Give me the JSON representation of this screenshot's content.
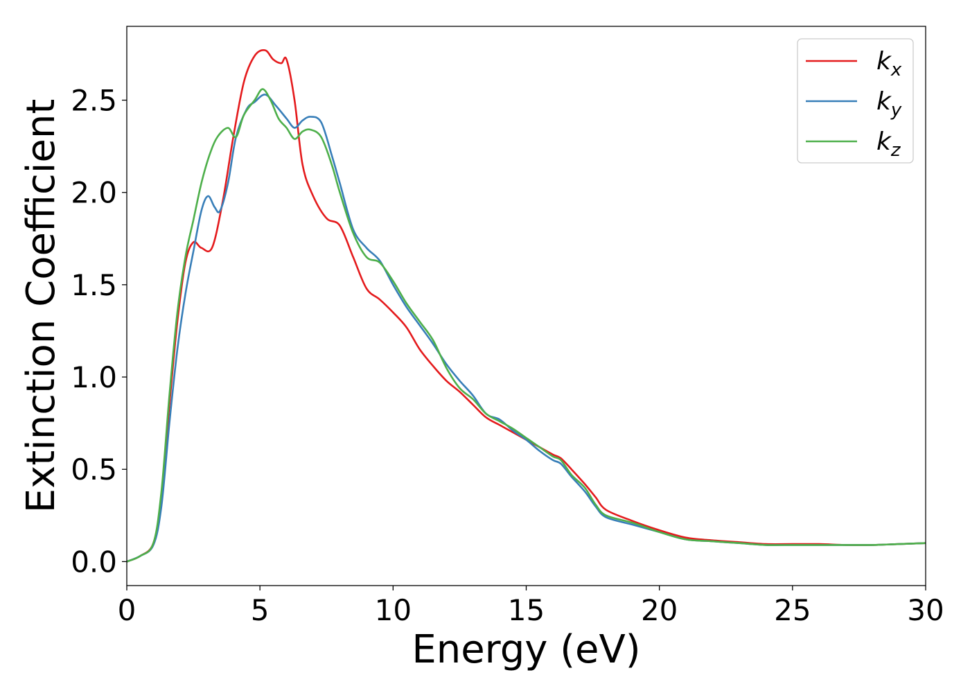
{
  "chart_data": {
    "type": "line",
    "title": "",
    "xlabel": "Energy (eV)",
    "ylabel": "Extinction Coefficient",
    "xlim": [
      0,
      30
    ],
    "ylim": [
      -0.13,
      2.9
    ],
    "xticks": [
      0,
      5,
      10,
      15,
      20,
      25,
      30
    ],
    "xtick_labels": [
      "0",
      "5",
      "10",
      "15",
      "20",
      "25",
      "30"
    ],
    "yticks": [
      0.0,
      0.5,
      1.0,
      1.5,
      2.0,
      2.5
    ],
    "ytick_labels": [
      "0.0",
      "0.5",
      "1.0",
      "1.5",
      "2.0",
      "2.5"
    ],
    "grid": false,
    "legend_position": "top-right",
    "series": [
      {
        "name": "k",
        "subscript": "x",
        "color": "#e41a1c",
        "x": [
          0,
          0.5,
          1.0,
          1.3,
          1.6,
          1.9,
          2.2,
          2.5,
          2.8,
          3.2,
          3.6,
          4.0,
          4.4,
          4.8,
          5.2,
          5.5,
          5.8,
          6.0,
          6.3,
          6.6,
          7.0,
          7.5,
          8.0,
          8.5,
          9.0,
          9.5,
          10.0,
          10.5,
          11.0,
          11.5,
          12.0,
          12.5,
          13.0,
          13.5,
          14.0,
          14.5,
          15.0,
          15.5,
          16.0,
          16.3,
          16.7,
          17.2,
          17.6,
          18.0,
          19.0,
          20.0,
          21.0,
          22.0,
          23.0,
          24.0,
          25.0,
          26.0,
          27.0,
          28.0,
          29.0,
          30.0
        ],
        "y": [
          0.0,
          0.03,
          0.1,
          0.35,
          0.85,
          1.3,
          1.62,
          1.73,
          1.7,
          1.7,
          1.95,
          2.3,
          2.6,
          2.74,
          2.77,
          2.72,
          2.7,
          2.72,
          2.5,
          2.15,
          1.98,
          1.86,
          1.82,
          1.65,
          1.48,
          1.42,
          1.35,
          1.27,
          1.15,
          1.06,
          0.98,
          0.92,
          0.85,
          0.78,
          0.74,
          0.7,
          0.66,
          0.62,
          0.58,
          0.56,
          0.5,
          0.42,
          0.35,
          0.28,
          0.22,
          0.17,
          0.13,
          0.115,
          0.105,
          0.095,
          0.095,
          0.095,
          0.09,
          0.09,
          0.095,
          0.1
        ]
      },
      {
        "name": "k",
        "subscript": "y",
        "color": "#377eb8",
        "x": [
          0,
          0.5,
          1.0,
          1.3,
          1.6,
          1.9,
          2.2,
          2.5,
          2.8,
          3.05,
          3.3,
          3.5,
          3.8,
          4.1,
          4.5,
          4.8,
          5.2,
          5.6,
          6.0,
          6.3,
          6.6,
          6.9,
          7.3,
          7.7,
          8.0,
          8.5,
          9.0,
          9.5,
          10.0,
          10.5,
          11.0,
          11.5,
          12.0,
          12.5,
          13.0,
          13.5,
          14.0,
          14.5,
          15.0,
          15.5,
          16.0,
          16.3,
          16.7,
          17.2,
          17.6,
          18.0,
          19.0,
          20.0,
          21.0,
          22.0,
          23.0,
          24.0,
          25.0,
          26.0,
          27.0,
          28.0,
          29.0,
          30.0
        ],
        "y": [
          0.0,
          0.03,
          0.09,
          0.3,
          0.75,
          1.15,
          1.45,
          1.68,
          1.9,
          1.98,
          1.92,
          1.9,
          2.05,
          2.3,
          2.45,
          2.49,
          2.53,
          2.47,
          2.4,
          2.35,
          2.39,
          2.41,
          2.38,
          2.2,
          2.05,
          1.8,
          1.7,
          1.63,
          1.5,
          1.38,
          1.28,
          1.18,
          1.07,
          0.98,
          0.9,
          0.8,
          0.77,
          0.71,
          0.66,
          0.6,
          0.55,
          0.53,
          0.46,
          0.38,
          0.3,
          0.24,
          0.2,
          0.16,
          0.12,
          0.11,
          0.1,
          0.09,
          0.09,
          0.09,
          0.09,
          0.09,
          0.095,
          0.1
        ]
      },
      {
        "name": "k",
        "subscript": "z",
        "color": "#4daf4a",
        "x": [
          0,
          0.5,
          1.0,
          1.3,
          1.6,
          1.9,
          2.2,
          2.5,
          2.8,
          3.1,
          3.4,
          3.8,
          4.1,
          4.4,
          4.8,
          5.1,
          5.4,
          5.7,
          6.0,
          6.3,
          6.6,
          6.9,
          7.3,
          7.7,
          8.0,
          8.5,
          9.0,
          9.5,
          10.0,
          10.5,
          11.0,
          11.5,
          12.0,
          12.5,
          13.0,
          13.5,
          14.0,
          14.5,
          15.0,
          15.5,
          16.0,
          16.3,
          16.7,
          17.2,
          17.6,
          18.0,
          19.0,
          20.0,
          21.0,
          22.0,
          23.0,
          24.0,
          25.0,
          26.0,
          27.0,
          28.0,
          29.0,
          30.0
        ],
        "y": [
          0.0,
          0.03,
          0.1,
          0.38,
          0.9,
          1.35,
          1.65,
          1.85,
          2.05,
          2.2,
          2.3,
          2.35,
          2.3,
          2.42,
          2.5,
          2.56,
          2.5,
          2.4,
          2.35,
          2.29,
          2.33,
          2.34,
          2.3,
          2.15,
          2.0,
          1.78,
          1.65,
          1.62,
          1.52,
          1.4,
          1.3,
          1.2,
          1.05,
          0.94,
          0.88,
          0.8,
          0.76,
          0.72,
          0.67,
          0.62,
          0.57,
          0.55,
          0.47,
          0.4,
          0.31,
          0.25,
          0.21,
          0.16,
          0.12,
          0.11,
          0.1,
          0.09,
          0.09,
          0.09,
          0.09,
          0.09,
          0.095,
          0.1
        ]
      }
    ]
  }
}
